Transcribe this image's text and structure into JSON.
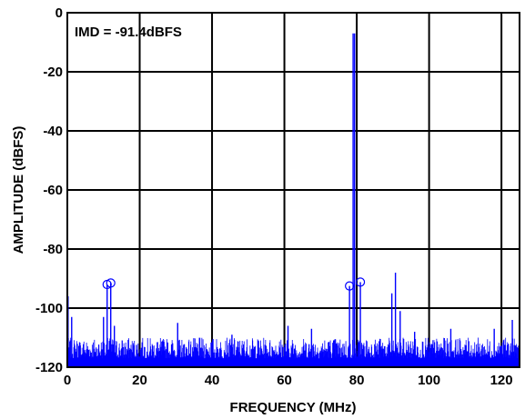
{
  "chart_data": {
    "type": "line",
    "title": "",
    "xlabel": "FREQUENCY (MHz)",
    "ylabel": "AMPLITUDE (dBFS)",
    "xlim": [
      0,
      125
    ],
    "ylim": [
      -120,
      0
    ],
    "x_ticks": [
      0,
      20,
      40,
      60,
      80,
      100,
      120
    ],
    "y_ticks": [
      0,
      -20,
      -40,
      -60,
      -80,
      -100,
      -120
    ],
    "grid": true,
    "annotation": "IMD = -91.4dBFS",
    "noise_floor": {
      "baseline": -120,
      "typical_min": -117,
      "typical_max": -110,
      "x_start": 0,
      "x_end": 125
    },
    "spectral_peaks": [
      {
        "x": 0.2,
        "y": -96
      },
      {
        "x": 1.2,
        "y": -103
      },
      {
        "x": 10.0,
        "y": -103
      },
      {
        "x": 11.0,
        "y": -92
      },
      {
        "x": 12.0,
        "y": -91.5
      },
      {
        "x": 13.0,
        "y": -106
      },
      {
        "x": 30.5,
        "y": -105
      },
      {
        "x": 45.5,
        "y": -109
      },
      {
        "x": 61.0,
        "y": -106
      },
      {
        "x": 67.5,
        "y": -107
      },
      {
        "x": 78.0,
        "y": -92.5
      },
      {
        "x": 79.0,
        "y": -7
      },
      {
        "x": 79.4,
        "y": -7
      },
      {
        "x": 81.0,
        "y": -91.2
      },
      {
        "x": 89.7,
        "y": -95
      },
      {
        "x": 90.7,
        "y": -88
      },
      {
        "x": 92.0,
        "y": -101
      },
      {
        "x": 96.0,
        "y": -108
      },
      {
        "x": 106.0,
        "y": -107
      },
      {
        "x": 118.0,
        "y": -107
      },
      {
        "x": 123.0,
        "y": -104
      }
    ],
    "marked_points": [
      {
        "x": 11.0,
        "y": -92
      },
      {
        "x": 12.0,
        "y": -91.5
      },
      {
        "x": 78.0,
        "y": -92.5
      },
      {
        "x": 81.0,
        "y": -91.2
      }
    ],
    "colors": {
      "trace": "#0000ff",
      "markers": "#0000ff",
      "grid": "#000000",
      "background": "#ffffff"
    }
  }
}
